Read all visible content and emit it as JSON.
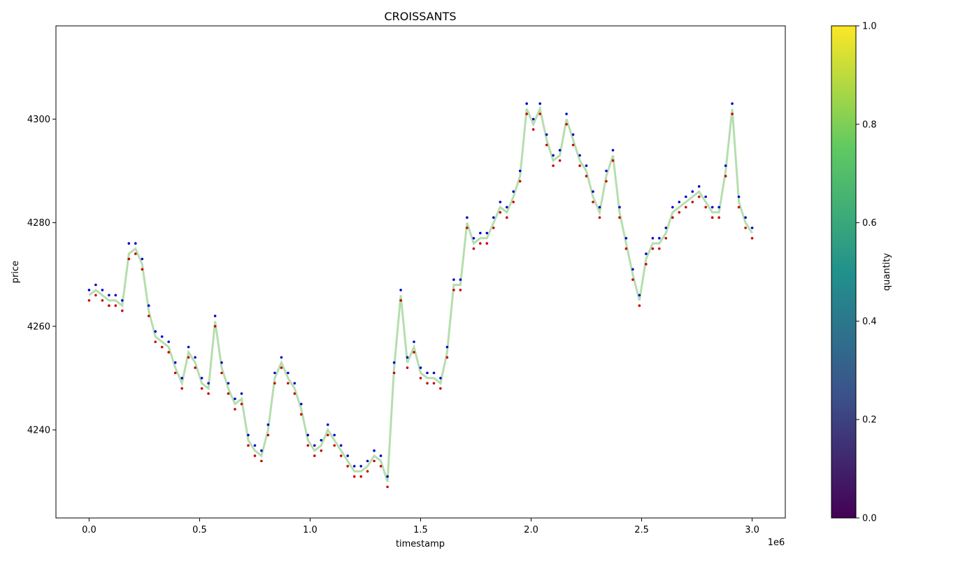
{
  "chart_data": {
    "type": "line",
    "title": "CROISSANTS",
    "xlabel": "timestamp",
    "ylabel": "price",
    "x_offset_label": "1e6",
    "xlim": [
      -0.15,
      3.15
    ],
    "ylim": [
      4223,
      4318
    ],
    "x_ticks": [
      {
        "value": 0.0,
        "label": "0.0"
      },
      {
        "value": 0.5,
        "label": "0.5"
      },
      {
        "value": 1.0,
        "label": "1.0"
      },
      {
        "value": 1.5,
        "label": "1.5"
      },
      {
        "value": 2.0,
        "label": "2.0"
      },
      {
        "value": 2.5,
        "label": "2.5"
      },
      {
        "value": 3.0,
        "label": "3.0"
      }
    ],
    "y_ticks": [
      {
        "value": 4240,
        "label": "4240"
      },
      {
        "value": 4260,
        "label": "4260"
      },
      {
        "value": 4280,
        "label": "4280"
      },
      {
        "value": 4300,
        "label": "4300"
      }
    ],
    "grid": false,
    "colorbar": {
      "label": "quantity",
      "range": [
        0.0,
        1.0
      ],
      "ticks": [
        {
          "value": 0.0,
          "label": "0.0"
        },
        {
          "value": 0.2,
          "label": "0.2"
        },
        {
          "value": 0.4,
          "label": "0.4"
        },
        {
          "value": 0.6,
          "label": "0.6"
        },
        {
          "value": 0.8,
          "label": "0.8"
        },
        {
          "value": 1.0,
          "label": "1.0"
        }
      ],
      "colormap": [
        "#440154",
        "#3b528b",
        "#21918c",
        "#5ec962",
        "#fde725"
      ]
    },
    "series": [
      {
        "role": "band",
        "color": "#a8d8a0",
        "x": [
          0.0,
          0.03,
          0.06,
          0.09,
          0.12,
          0.15,
          0.18,
          0.21,
          0.24,
          0.27,
          0.3,
          0.33,
          0.36,
          0.39,
          0.42,
          0.45,
          0.48,
          0.51,
          0.54,
          0.57,
          0.6,
          0.63,
          0.66,
          0.69,
          0.72,
          0.75,
          0.78,
          0.81,
          0.84,
          0.87,
          0.9,
          0.93,
          0.96,
          0.99,
          1.02,
          1.05,
          1.08,
          1.11,
          1.14,
          1.17,
          1.2,
          1.23,
          1.26,
          1.29,
          1.32,
          1.35,
          1.38,
          1.41,
          1.44,
          1.47,
          1.5,
          1.53,
          1.56,
          1.59,
          1.62,
          1.65,
          1.68,
          1.71,
          1.74,
          1.77,
          1.8,
          1.83,
          1.86,
          1.89,
          1.92,
          1.95,
          1.98,
          2.01,
          2.04,
          2.07,
          2.1,
          2.13,
          2.16,
          2.19,
          2.22,
          2.25,
          2.28,
          2.31,
          2.34,
          2.37,
          2.4,
          2.43,
          2.46,
          2.49,
          2.52,
          2.55,
          2.58,
          2.61,
          2.64,
          2.67,
          2.7,
          2.73,
          2.76,
          2.79,
          2.82,
          2.85,
          2.88,
          2.91,
          2.94,
          2.97,
          3.0
        ],
        "y": [
          4266,
          4267,
          4266,
          4265,
          4265,
          4264,
          4274,
          4275,
          4272,
          4263,
          4258,
          4257,
          4256,
          4252,
          4249,
          4255,
          4253,
          4249,
          4248,
          4261,
          4252,
          4248,
          4245,
          4246,
          4238,
          4236,
          4235,
          4240,
          4250,
          4253,
          4250,
          4248,
          4244,
          4238,
          4236,
          4237,
          4240,
          4238,
          4236,
          4234,
          4232,
          4232,
          4233,
          4235,
          4234,
          4230,
          4252,
          4266,
          4253,
          4256,
          4251,
          4250,
          4250,
          4249,
          4255,
          4268,
          4268,
          4280,
          4276,
          4277,
          4277,
          4280,
          4283,
          4282,
          4285,
          4289,
          4302,
          4299,
          4302,
          4296,
          4292,
          4293,
          4300,
          4296,
          4292,
          4290,
          4285,
          4282,
          4289,
          4293,
          4282,
          4276,
          4270,
          4265,
          4273,
          4276,
          4276,
          4278,
          4282,
          4283,
          4284,
          4285,
          4286,
          4284,
          4282,
          4282,
          4290,
          4302,
          4284,
          4280,
          4278
        ]
      },
      {
        "role": "ask",
        "color": "#0000cc",
        "x": [
          0.0,
          0.03,
          0.06,
          0.09,
          0.12,
          0.15,
          0.18,
          0.21,
          0.24,
          0.27,
          0.3,
          0.33,
          0.36,
          0.39,
          0.42,
          0.45,
          0.48,
          0.51,
          0.54,
          0.57,
          0.6,
          0.63,
          0.66,
          0.69,
          0.72,
          0.75,
          0.78,
          0.81,
          0.84,
          0.87,
          0.9,
          0.93,
          0.96,
          0.99,
          1.02,
          1.05,
          1.08,
          1.11,
          1.14,
          1.17,
          1.2,
          1.23,
          1.26,
          1.29,
          1.32,
          1.35,
          1.38,
          1.41,
          1.44,
          1.47,
          1.5,
          1.53,
          1.56,
          1.59,
          1.62,
          1.65,
          1.68,
          1.71,
          1.74,
          1.77,
          1.8,
          1.83,
          1.86,
          1.89,
          1.92,
          1.95,
          1.98,
          2.01,
          2.04,
          2.07,
          2.1,
          2.13,
          2.16,
          2.19,
          2.22,
          2.25,
          2.28,
          2.31,
          2.34,
          2.37,
          2.4,
          2.43,
          2.46,
          2.49,
          2.52,
          2.55,
          2.58,
          2.61,
          2.64,
          2.67,
          2.7,
          2.73,
          2.76,
          2.79,
          2.82,
          2.85,
          2.88,
          2.91,
          2.94,
          2.97,
          3.0
        ],
        "y": [
          4267,
          4268,
          4267,
          4266,
          4266,
          4265,
          4276,
          4276,
          4273,
          4264,
          4259,
          4258,
          4257,
          4253,
          4250,
          4256,
          4254,
          4250,
          4249,
          4262,
          4253,
          4249,
          4246,
          4247,
          4239,
          4237,
          4236,
          4241,
          4251,
          4254,
          4251,
          4249,
          4245,
          4239,
          4237,
          4238,
          4241,
          4239,
          4237,
          4235,
          4233,
          4233,
          4234,
          4236,
          4235,
          4231,
          4253,
          4267,
          4254,
          4257,
          4252,
          4251,
          4251,
          4250,
          4256,
          4269,
          4269,
          4281,
          4277,
          4278,
          4278,
          4281,
          4284,
          4283,
          4286,
          4290,
          4303,
          4300,
          4303,
          4297,
          4293,
          4294,
          4301,
          4297,
          4293,
          4291,
          4286,
          4283,
          4290,
          4294,
          4283,
          4277,
          4271,
          4266,
          4274,
          4277,
          4277,
          4279,
          4283,
          4284,
          4285,
          4286,
          4287,
          4285,
          4283,
          4283,
          4291,
          4303,
          4285,
          4281,
          4279
        ]
      },
      {
        "role": "bid",
        "color": "#cc0000",
        "x": [
          0.0,
          0.03,
          0.06,
          0.09,
          0.12,
          0.15,
          0.18,
          0.21,
          0.24,
          0.27,
          0.3,
          0.33,
          0.36,
          0.39,
          0.42,
          0.45,
          0.48,
          0.51,
          0.54,
          0.57,
          0.6,
          0.63,
          0.66,
          0.69,
          0.72,
          0.75,
          0.78,
          0.81,
          0.84,
          0.87,
          0.9,
          0.93,
          0.96,
          0.99,
          1.02,
          1.05,
          1.08,
          1.11,
          1.14,
          1.17,
          1.2,
          1.23,
          1.26,
          1.29,
          1.32,
          1.35,
          1.38,
          1.41,
          1.44,
          1.47,
          1.5,
          1.53,
          1.56,
          1.59,
          1.62,
          1.65,
          1.68,
          1.71,
          1.74,
          1.77,
          1.8,
          1.83,
          1.86,
          1.89,
          1.92,
          1.95,
          1.98,
          2.01,
          2.04,
          2.07,
          2.1,
          2.13,
          2.16,
          2.19,
          2.22,
          2.25,
          2.28,
          2.31,
          2.34,
          2.37,
          2.4,
          2.43,
          2.46,
          2.49,
          2.52,
          2.55,
          2.58,
          2.61,
          2.64,
          2.67,
          2.7,
          2.73,
          2.76,
          2.79,
          2.82,
          2.85,
          2.88,
          2.91,
          2.94,
          2.97,
          3.0
        ],
        "y": [
          4265,
          4266,
          4265,
          4264,
          4264,
          4263,
          4273,
          4274,
          4271,
          4262,
          4257,
          4256,
          4255,
          4251,
          4248,
          4254,
          4252,
          4248,
          4247,
          4260,
          4251,
          4247,
          4244,
          4245,
          4237,
          4235,
          4234,
          4239,
          4249,
          4252,
          4249,
          4247,
          4243,
          4237,
          4235,
          4236,
          4239,
          4237,
          4235,
          4233,
          4231,
          4231,
          4232,
          4234,
          4233,
          4229,
          4251,
          4265,
          4252,
          4255,
          4250,
          4249,
          4249,
          4248,
          4254,
          4267,
          4267,
          4279,
          4275,
          4276,
          4276,
          4279,
          4282,
          4281,
          4284,
          4288,
          4301,
          4298,
          4301,
          4295,
          4291,
          4292,
          4299,
          4295,
          4291,
          4289,
          4284,
          4281,
          4288,
          4292,
          4281,
          4275,
          4269,
          4264,
          4272,
          4275,
          4275,
          4277,
          4281,
          4282,
          4283,
          4284,
          4285,
          4283,
          4281,
          4281,
          4289,
          4301,
          4283,
          4279,
          4277
        ]
      }
    ]
  }
}
